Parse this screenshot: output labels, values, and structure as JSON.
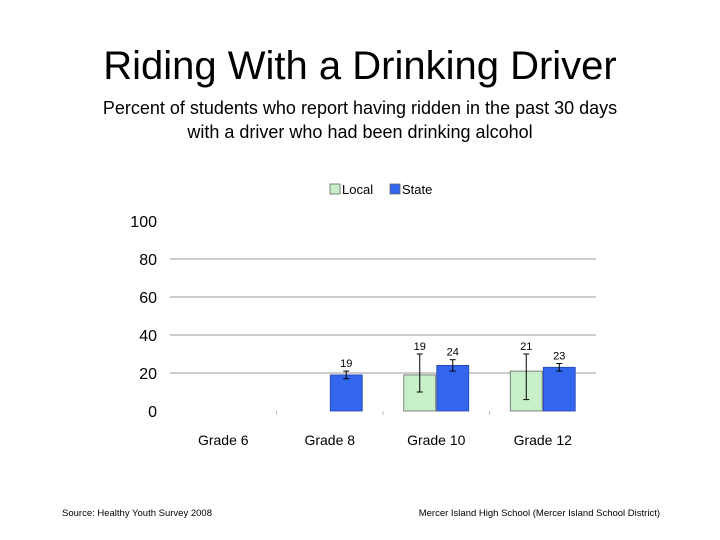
{
  "title": "Riding With a Drinking Driver",
  "subtitle_line1": "Percent of students who report having ridden in the past 30 days",
  "subtitle_line2": "with a driver who had been drinking alcohol",
  "footer_left": "Source: Healthy Youth Survey 2008",
  "footer_right": "Mercer Island High School (Mercer Island School District)",
  "colors": {
    "local": "#c8f0c8",
    "state": "#3366ee",
    "gridline": "#999999",
    "errorbar": "#000000"
  },
  "chart_data": {
    "type": "bar",
    "categories": [
      "Grade 6",
      "Grade 8",
      "Grade 10",
      "Grade 12"
    ],
    "series": [
      {
        "name": "Local",
        "values": [
          null,
          null,
          19,
          21
        ],
        "labels": [
          "",
          "",
          "19",
          "21"
        ],
        "error": [
          null,
          null,
          [
            10,
            30
          ],
          [
            6,
            30
          ]
        ]
      },
      {
        "name": "State",
        "values": [
          null,
          19,
          24,
          23
        ],
        "labels": [
          "",
          "19",
          "24",
          "23"
        ],
        "error": [
          null,
          [
            17,
            21
          ],
          [
            21,
            27
          ],
          [
            21,
            25
          ]
        ]
      }
    ],
    "ylim": [
      0,
      100
    ],
    "yticks": [
      "0",
      "20",
      "40",
      "60",
      "80",
      "100"
    ],
    "grid": true,
    "legend": "top",
    "error_bars": true
  }
}
